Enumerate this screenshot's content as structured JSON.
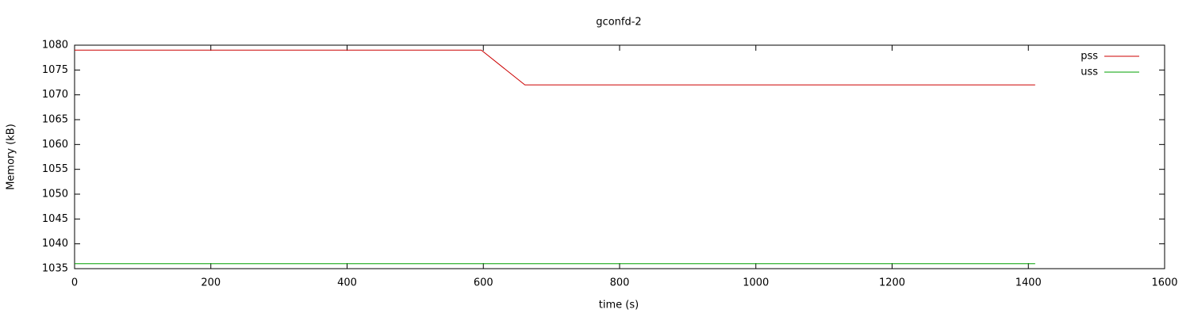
{
  "chart_data": {
    "type": "line",
    "title": "gconfd-2",
    "x_label": "time (s)",
    "y_label": "Memory (kB)",
    "xlim": [
      0,
      1600
    ],
    "xticks": [
      0,
      200,
      400,
      600,
      800,
      1000,
      1200,
      1400,
      1600
    ],
    "ylim": [
      1035,
      1080
    ],
    "yticks": [
      1035,
      1040,
      1045,
      1050,
      1055,
      1060,
      1065,
      1070,
      1075,
      1080
    ],
    "legend": "top-right",
    "grid": false,
    "series": [
      {
        "name": "pss",
        "color": "#cc0000",
        "x": [
          0,
          597,
          661,
          1410
        ],
        "values": [
          1079,
          1079,
          1072,
          1072
        ]
      },
      {
        "name": "uss",
        "color": "#00a000",
        "x": [
          0,
          1410
        ],
        "values": [
          1036,
          1036
        ]
      }
    ]
  }
}
